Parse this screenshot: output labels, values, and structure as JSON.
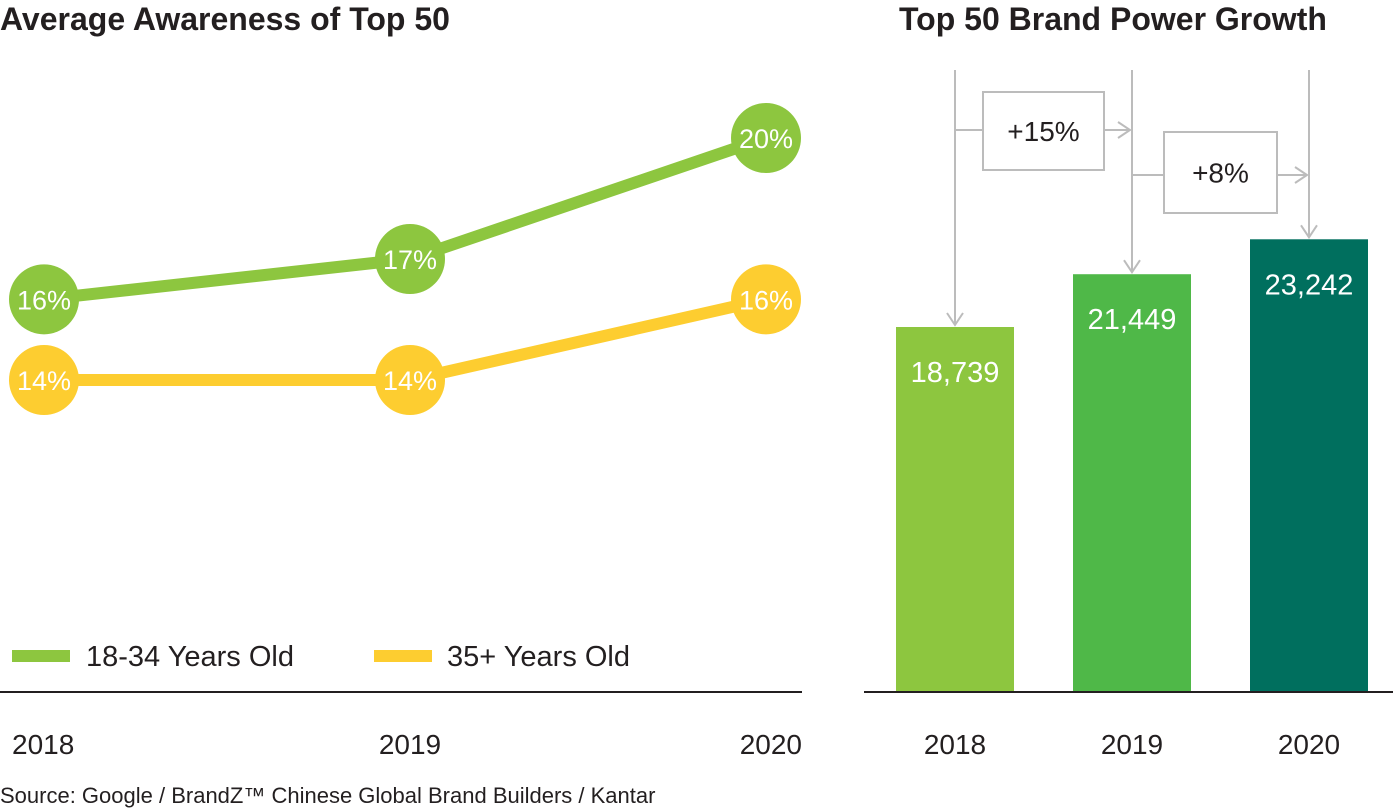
{
  "source": "Source: Google / BrandZ™ Chinese Global Brand Builders / Kantar",
  "colors": {
    "green_light": "#8dc63f",
    "green_mid": "#4fb848",
    "green_dark": "#006f5e",
    "yellow": "#fdcd30",
    "arrow_grey": "#bcbcbc",
    "axis": "#231f20"
  },
  "chart_data": [
    {
      "type": "line",
      "title": "Average Awareness of Top 50",
      "categories": [
        "2018",
        "2019",
        "2020"
      ],
      "series": [
        {
          "name": "18-34 Years Old",
          "values": [
            16,
            17,
            20
          ],
          "labels": [
            "16%",
            "17%",
            "20%"
          ],
          "color": "#8dc63f"
        },
        {
          "name": "35+ Years Old",
          "values": [
            14,
            14,
            16
          ],
          "labels": [
            "14%",
            "14%",
            "16%"
          ],
          "color": "#fdcd30"
        }
      ],
      "xlabel": "",
      "ylabel": "",
      "ylim": [
        0,
        22
      ],
      "grid": false,
      "legend": "bottom-left"
    },
    {
      "type": "bar",
      "title": "Top 50 Brand Power Growth",
      "categories": [
        "2018",
        "2019",
        "2020"
      ],
      "values": [
        18739,
        21449,
        23242
      ],
      "labels": [
        "18,739",
        "21,449",
        "23,242"
      ],
      "colors": [
        "#8dc63f",
        "#4fb848",
        "#006f5e"
      ],
      "growth": [
        {
          "from": "2018",
          "to": "2019",
          "label": "+15%"
        },
        {
          "from": "2019",
          "to": "2020",
          "label": "+8%"
        }
      ],
      "xlabel": "",
      "ylabel": "",
      "ylim": [
        0,
        27500
      ],
      "grid": false
    }
  ]
}
